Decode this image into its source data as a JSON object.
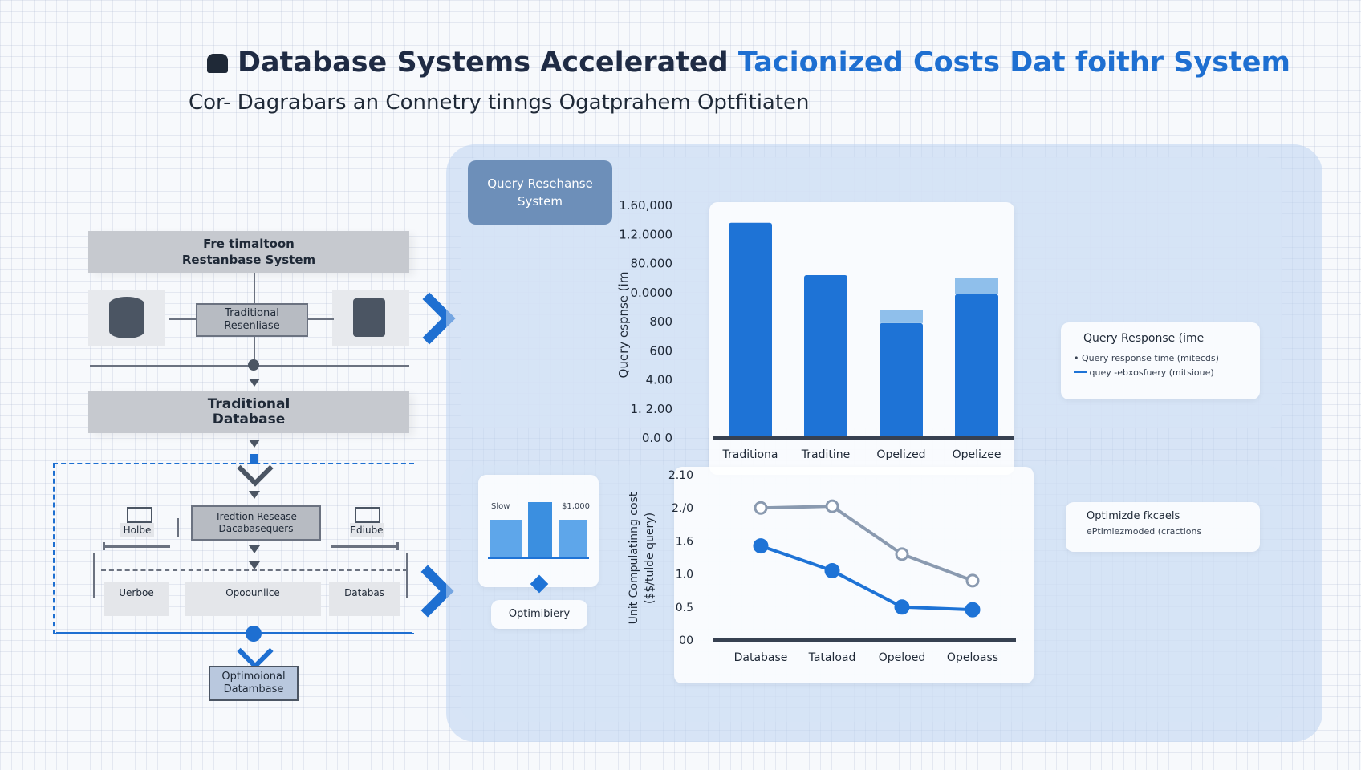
{
  "header": {
    "title_dark": "Database Systems Accelerated ",
    "title_blue": "Tacionized Costs Dat foithr System",
    "subtitle": "Cor- Dagrabars an Connetry tinngs Ogatprahem Optfitiaten"
  },
  "flow": {
    "top_head": "Fre timaltoon\nRestanbase System",
    "top_box": "Traditional\nResenliase",
    "mid_head": "Traditional\nDatabase",
    "dashed_box": "Tredtion Resease\nDacabasequers",
    "icon_label_left": "Holbe",
    "icon_label_right": "Ediube",
    "bottom_labels": [
      "Uerboe",
      "Opoouniice",
      "Databas"
    ],
    "final_box": "Optimoional\nDatambase"
  },
  "panel": {
    "tag": "Query Resehanse\nSystem",
    "mini_chart_left": "Slow",
    "mini_chart_right": "$1,000",
    "mini_label": "Optimibiery",
    "legend1_title": "Query Response (ime",
    "legend1_items": [
      "Query response time (mitecds)",
      "quey -ebxosfuery (mitsioue)"
    ],
    "legend2_title": "Optimizde fkcaels",
    "legend2_items": [
      "ePtimiezmoded (cractions"
    ]
  },
  "chart_data": [
    {
      "type": "bar",
      "ylabel": "Query espnse (im",
      "yticks": [
        "0.0 0",
        "1. 2.00",
        "4.00",
        "600",
        "800",
        "0.0000",
        "80.000",
        "1.2.0000",
        "1.60,000"
      ],
      "categories": [
        "Traditiona",
        "Traditine",
        "Opelized",
        "Opelizee"
      ],
      "values": [
        7.4,
        5.6,
        3.95,
        4.95
      ],
      "caps": [
        0,
        0,
        0.45,
        0.55
      ],
      "ylim": [
        0,
        8
      ],
      "colors": {
        "bar": "#1e73d6",
        "cap": "#8fbfeb"
      }
    },
    {
      "type": "line",
      "ylabel": "Unit Compulatinng cost\n($$/tulde query)",
      "yticks": [
        "00",
        "0.5",
        "1.0",
        "1.6",
        "2./0",
        "2.10"
      ],
      "categories": [
        "Database",
        "Tataload",
        "Opeloed",
        "Opeloass"
      ],
      "ylim": [
        0,
        5
      ],
      "series": [
        {
          "values": [
            4.0,
            4.05,
            2.6,
            1.8
          ],
          "color": "#8a9ab0"
        },
        {
          "values": [
            2.85,
            2.1,
            1.0,
            0.92
          ],
          "color": "#1e73d6"
        }
      ]
    }
  ]
}
